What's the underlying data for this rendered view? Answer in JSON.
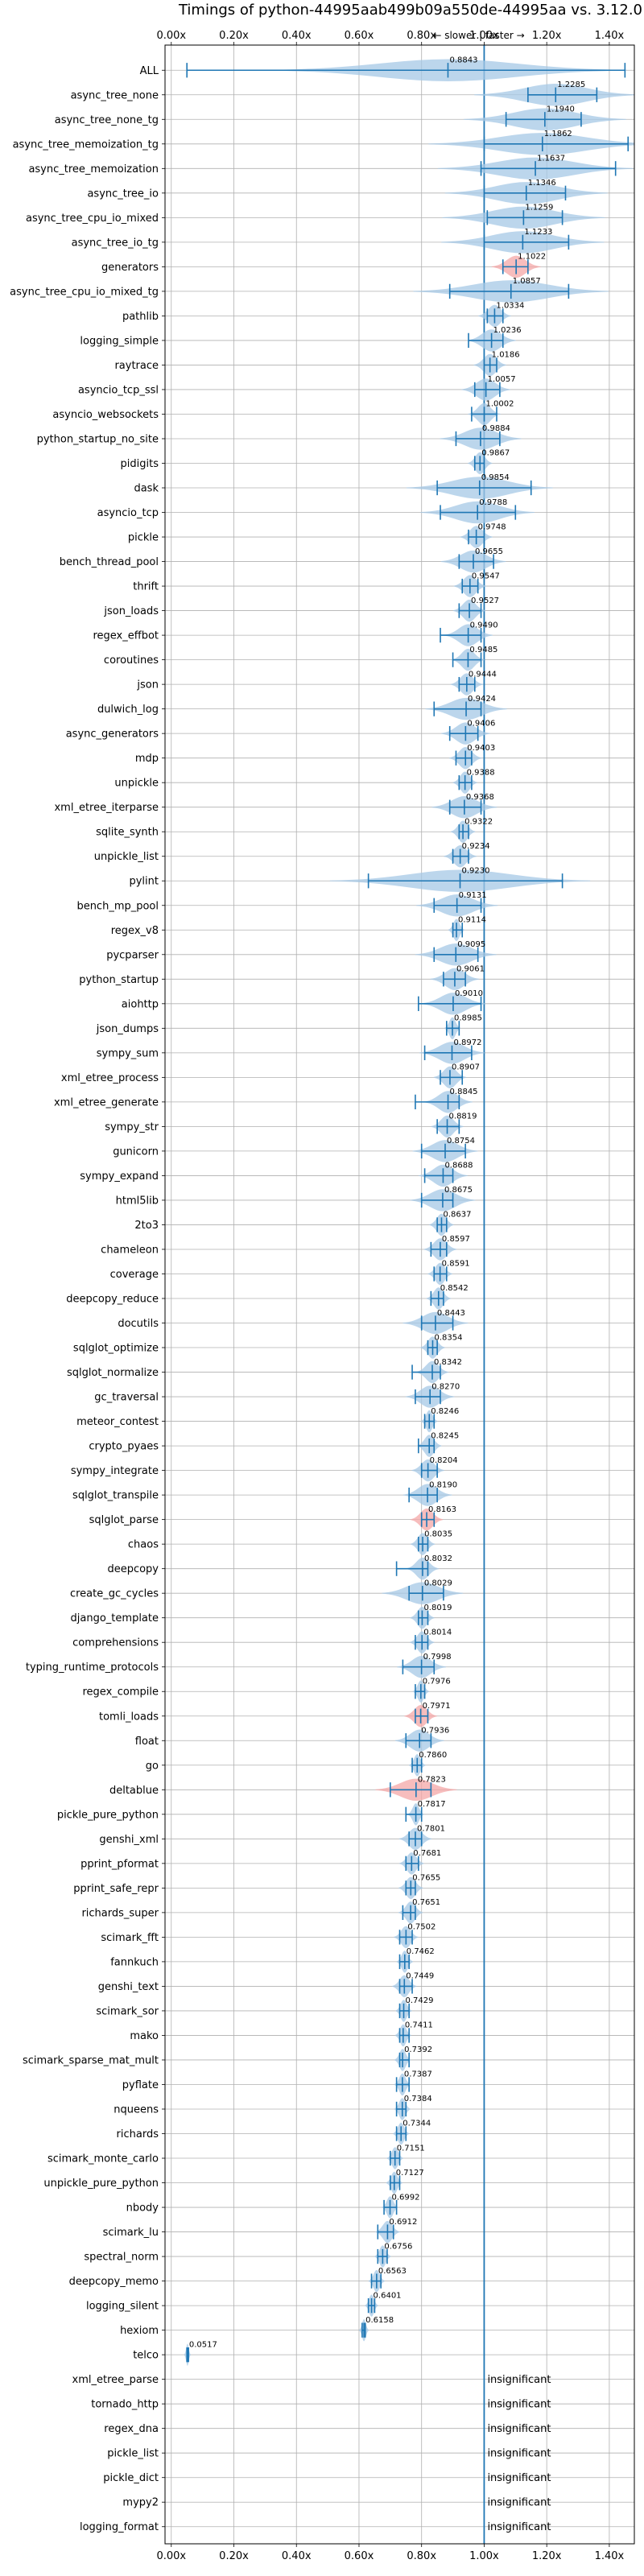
{
  "chart_data": {
    "type": "violin",
    "title": "Timings of python-44995aab499b09a550de-44995aa vs. 3.12.0",
    "xlabel": "",
    "ylabel": "",
    "xlim": [
      -0.02,
      1.48
    ],
    "xticks": [
      0.0,
      0.2,
      0.4,
      0.6,
      0.8,
      1.0,
      1.2,
      1.4
    ],
    "xtick_labels": [
      "0.00x",
      "0.20x",
      "0.40x",
      "0.60x",
      "0.80x",
      "1.00x",
      "1.20x",
      "1.40x"
    ],
    "direction_annotation": "← slower | faster →",
    "reference_line": 1.0,
    "grid": true,
    "accent_color": "#1f77b4",
    "violin_color": "#a6c8e6",
    "flag_color": "#f4a7a7",
    "benchmarks": [
      {
        "name": "ALL",
        "value": 0.8843,
        "label": "0.8843",
        "lo": 0.05,
        "hi": 1.45,
        "spread": 0.22
      },
      {
        "name": "async_tree_none",
        "value": 1.2285,
        "label": "1.2285",
        "lo": 1.14,
        "hi": 1.36,
        "spread": 0.1
      },
      {
        "name": "async_tree_none_tg",
        "value": 1.194,
        "label": "1.1940",
        "lo": 1.07,
        "hi": 1.31,
        "spread": 0.1
      },
      {
        "name": "async_tree_memoization_tg",
        "value": 1.1862,
        "label": "1.1862",
        "lo": 1.0,
        "hi": 1.46,
        "spread": 0.14
      },
      {
        "name": "async_tree_memoization",
        "value": 1.1637,
        "label": "1.1637",
        "lo": 0.99,
        "hi": 1.42,
        "spread": 0.12
      },
      {
        "name": "async_tree_io",
        "value": 1.1346,
        "label": "1.1346",
        "lo": 1.0,
        "hi": 1.26,
        "spread": 0.1
      },
      {
        "name": "async_tree_cpu_io_mixed",
        "value": 1.1259,
        "label": "1.1259",
        "lo": 1.01,
        "hi": 1.25,
        "spread": 0.1
      },
      {
        "name": "async_tree_io_tg",
        "value": 1.1233,
        "label": "1.1233",
        "lo": 1.0,
        "hi": 1.27,
        "spread": 0.1
      },
      {
        "name": "generators",
        "value": 1.1022,
        "label": "1.1022",
        "lo": 1.06,
        "hi": 1.14,
        "spread": 0.03,
        "flag": true
      },
      {
        "name": "async_tree_cpu_io_mixed_tg",
        "value": 1.0857,
        "label": "1.0857",
        "lo": 0.89,
        "hi": 1.27,
        "spread": 0.12
      },
      {
        "name": "pathlib",
        "value": 1.0334,
        "label": "1.0334",
        "lo": 1.01,
        "hi": 1.06,
        "spread": 0.02
      },
      {
        "name": "logging_simple",
        "value": 1.0236,
        "label": "1.0236",
        "lo": 0.95,
        "hi": 1.06,
        "spread": 0.03
      },
      {
        "name": "raytrace",
        "value": 1.0186,
        "label": "1.0186",
        "lo": 1.0,
        "hi": 1.04,
        "spread": 0.02
      },
      {
        "name": "asyncio_tcp_ssl",
        "value": 1.0057,
        "label": "1.0057",
        "lo": 0.97,
        "hi": 1.05,
        "spread": 0.03
      },
      {
        "name": "asyncio_websockets",
        "value": 1.0002,
        "label": "1.0002",
        "lo": 0.96,
        "hi": 1.04,
        "spread": 0.02
      },
      {
        "name": "python_startup_no_site",
        "value": 0.9884,
        "label": "0.9884",
        "lo": 0.91,
        "hi": 1.05,
        "spread": 0.05
      },
      {
        "name": "pidigits",
        "value": 0.9867,
        "label": "0.9867",
        "lo": 0.97,
        "hi": 1.0,
        "spread": 0.015
      },
      {
        "name": "dask",
        "value": 0.9854,
        "label": "0.9854",
        "lo": 0.85,
        "hi": 1.15,
        "spread": 0.09
      },
      {
        "name": "asyncio_tcp",
        "value": 0.9788,
        "label": "0.9788",
        "lo": 0.86,
        "hi": 1.1,
        "spread": 0.07
      },
      {
        "name": "pickle",
        "value": 0.9748,
        "label": "0.9748",
        "lo": 0.95,
        "hi": 1.0,
        "spread": 0.02
      },
      {
        "name": "bench_thread_pool",
        "value": 0.9655,
        "label": "0.9655",
        "lo": 0.92,
        "hi": 1.03,
        "spread": 0.04
      },
      {
        "name": "thrift",
        "value": 0.9547,
        "label": "0.9547",
        "lo": 0.93,
        "hi": 0.98,
        "spread": 0.02
      },
      {
        "name": "json_loads",
        "value": 0.9527,
        "label": "0.9527",
        "lo": 0.92,
        "hi": 0.99,
        "spread": 0.02
      },
      {
        "name": "regex_effbot",
        "value": 0.949,
        "label": "0.9490",
        "lo": 0.86,
        "hi": 0.99,
        "spread": 0.03
      },
      {
        "name": "coroutines",
        "value": 0.9485,
        "label": "0.9485",
        "lo": 0.9,
        "hi": 0.99,
        "spread": 0.02
      },
      {
        "name": "json",
        "value": 0.9444,
        "label": "0.9444",
        "lo": 0.92,
        "hi": 0.97,
        "spread": 0.02
      },
      {
        "name": "dulwich_log",
        "value": 0.9424,
        "label": "0.9424",
        "lo": 0.84,
        "hi": 0.99,
        "spread": 0.05
      },
      {
        "name": "async_generators",
        "value": 0.9406,
        "label": "0.9406",
        "lo": 0.89,
        "hi": 0.98,
        "spread": 0.03
      },
      {
        "name": "mdp",
        "value": 0.9403,
        "label": "0.9403",
        "lo": 0.91,
        "hi": 0.96,
        "spread": 0.02
      },
      {
        "name": "unpickle",
        "value": 0.9388,
        "label": "0.9388",
        "lo": 0.92,
        "hi": 0.96,
        "spread": 0.015
      },
      {
        "name": "xml_etree_iterparse",
        "value": 0.9368,
        "label": "0.9368",
        "lo": 0.89,
        "hi": 0.99,
        "spread": 0.04
      },
      {
        "name": "sqlite_synth",
        "value": 0.9322,
        "label": "0.9322",
        "lo": 0.92,
        "hi": 0.95,
        "spread": 0.015
      },
      {
        "name": "unpickle_list",
        "value": 0.9234,
        "label": "0.9234",
        "lo": 0.9,
        "hi": 0.95,
        "spread": 0.02
      },
      {
        "name": "pylint",
        "value": 0.923,
        "label": "0.9230",
        "lo": 0.63,
        "hi": 1.25,
        "spread": 0.16
      },
      {
        "name": "bench_mp_pool",
        "value": 0.9131,
        "label": "0.9131",
        "lo": 0.84,
        "hi": 0.99,
        "spread": 0.05
      },
      {
        "name": "regex_v8",
        "value": 0.9114,
        "label": "0.9114",
        "lo": 0.9,
        "hi": 0.93,
        "spread": 0.01
      },
      {
        "name": "pycparser",
        "value": 0.9095,
        "label": "0.9095",
        "lo": 0.84,
        "hi": 0.98,
        "spread": 0.05
      },
      {
        "name": "python_startup",
        "value": 0.9061,
        "label": "0.9061",
        "lo": 0.87,
        "hi": 0.94,
        "spread": 0.03
      },
      {
        "name": "aiohttp",
        "value": 0.901,
        "label": "0.9010",
        "lo": 0.79,
        "hi": 0.99,
        "spread": 0.04
      },
      {
        "name": "json_dumps",
        "value": 0.8985,
        "label": "0.8985",
        "lo": 0.88,
        "hi": 0.92,
        "spread": 0.01
      },
      {
        "name": "sympy_sum",
        "value": 0.8972,
        "label": "0.8972",
        "lo": 0.81,
        "hi": 0.96,
        "spread": 0.04
      },
      {
        "name": "xml_etree_process",
        "value": 0.8907,
        "label": "0.8907",
        "lo": 0.86,
        "hi": 0.93,
        "spread": 0.02
      },
      {
        "name": "xml_etree_generate",
        "value": 0.8845,
        "label": "0.8845",
        "lo": 0.78,
        "hi": 0.92,
        "spread": 0.03
      },
      {
        "name": "sympy_str",
        "value": 0.8819,
        "label": "0.8819",
        "lo": 0.85,
        "hi": 0.92,
        "spread": 0.02
      },
      {
        "name": "gunicorn",
        "value": 0.8754,
        "label": "0.8754",
        "lo": 0.8,
        "hi": 0.94,
        "spread": 0.04
      },
      {
        "name": "sympy_expand",
        "value": 0.8688,
        "label": "0.8688",
        "lo": 0.81,
        "hi": 0.9,
        "spread": 0.03
      },
      {
        "name": "html5lib",
        "value": 0.8675,
        "label": "0.8675",
        "lo": 0.8,
        "hi": 0.9,
        "spread": 0.04
      },
      {
        "name": "2to3",
        "value": 0.8637,
        "label": "0.8637",
        "lo": 0.85,
        "hi": 0.88,
        "spread": 0.015
      },
      {
        "name": "chameleon",
        "value": 0.8597,
        "label": "0.8597",
        "lo": 0.83,
        "hi": 0.88,
        "spread": 0.02
      },
      {
        "name": "coverage",
        "value": 0.8591,
        "label": "0.8591",
        "lo": 0.84,
        "hi": 0.88,
        "spread": 0.015
      },
      {
        "name": "deepcopy_reduce",
        "value": 0.8542,
        "label": "0.8542",
        "lo": 0.83,
        "hi": 0.87,
        "spread": 0.015
      },
      {
        "name": "docutils",
        "value": 0.8443,
        "label": "0.8443",
        "lo": 0.8,
        "hi": 0.9,
        "spread": 0.04
      },
      {
        "name": "sqlglot_optimize",
        "value": 0.8354,
        "label": "0.8354",
        "lo": 0.82,
        "hi": 0.85,
        "spread": 0.015
      },
      {
        "name": "sqlglot_normalize",
        "value": 0.8342,
        "label": "0.8342",
        "lo": 0.77,
        "hi": 0.86,
        "spread": 0.02
      },
      {
        "name": "gc_traversal",
        "value": 0.827,
        "label": "0.8270",
        "lo": 0.78,
        "hi": 0.86,
        "spread": 0.03
      },
      {
        "name": "meteor_contest",
        "value": 0.8246,
        "label": "0.8246",
        "lo": 0.81,
        "hi": 0.84,
        "spread": 0.01
      },
      {
        "name": "crypto_pyaes",
        "value": 0.8245,
        "label": "0.8245",
        "lo": 0.79,
        "hi": 0.84,
        "spread": 0.015
      },
      {
        "name": "sympy_integrate",
        "value": 0.8204,
        "label": "0.8204",
        "lo": 0.8,
        "hi": 0.85,
        "spread": 0.02
      },
      {
        "name": "sqlglot_transpile",
        "value": 0.819,
        "label": "0.8190",
        "lo": 0.76,
        "hi": 0.85,
        "spread": 0.03
      },
      {
        "name": "sqlglot_parse",
        "value": 0.8163,
        "label": "0.8163",
        "lo": 0.8,
        "hi": 0.84,
        "spread": 0.02,
        "flag": true
      },
      {
        "name": "chaos",
        "value": 0.8035,
        "label": "0.8035",
        "lo": 0.79,
        "hi": 0.82,
        "spread": 0.015
      },
      {
        "name": "deepcopy",
        "value": 0.8032,
        "label": "0.8032",
        "lo": 0.72,
        "hi": 0.82,
        "spread": 0.02
      },
      {
        "name": "create_gc_cycles",
        "value": 0.8029,
        "label": "0.8029",
        "lo": 0.76,
        "hi": 0.87,
        "spread": 0.05
      },
      {
        "name": "django_template",
        "value": 0.8019,
        "label": "0.8019",
        "lo": 0.79,
        "hi": 0.82,
        "spread": 0.015
      },
      {
        "name": "comprehensions",
        "value": 0.8014,
        "label": "0.8014",
        "lo": 0.78,
        "hi": 0.82,
        "spread": 0.015
      },
      {
        "name": "typing_runtime_protocols",
        "value": 0.7998,
        "label": "0.7998",
        "lo": 0.74,
        "hi": 0.84,
        "spread": 0.03
      },
      {
        "name": "regex_compile",
        "value": 0.7976,
        "label": "0.7976",
        "lo": 0.78,
        "hi": 0.81,
        "spread": 0.01
      },
      {
        "name": "tomli_loads",
        "value": 0.7971,
        "label": "0.7971",
        "lo": 0.78,
        "hi": 0.82,
        "spread": 0.02,
        "flag": true
      },
      {
        "name": "float",
        "value": 0.7936,
        "label": "0.7936",
        "lo": 0.75,
        "hi": 0.83,
        "spread": 0.03
      },
      {
        "name": "go",
        "value": 0.786,
        "label": "0.7860",
        "lo": 0.77,
        "hi": 0.8,
        "spread": 0.01
      },
      {
        "name": "deltablue",
        "value": 0.7823,
        "label": "0.7823",
        "lo": 0.7,
        "hi": 0.83,
        "spread": 0.05,
        "flag": true
      },
      {
        "name": "pickle_pure_python",
        "value": 0.7817,
        "label": "0.7817",
        "lo": 0.75,
        "hi": 0.8,
        "spread": 0.01
      },
      {
        "name": "genshi_xml",
        "value": 0.7801,
        "label": "0.7801",
        "lo": 0.76,
        "hi": 0.8,
        "spread": 0.02
      },
      {
        "name": "pprint_pformat",
        "value": 0.7681,
        "label": "0.7681",
        "lo": 0.75,
        "hi": 0.79,
        "spread": 0.015
      },
      {
        "name": "pprint_safe_repr",
        "value": 0.7655,
        "label": "0.7655",
        "lo": 0.75,
        "hi": 0.78,
        "spread": 0.015
      },
      {
        "name": "richards_super",
        "value": 0.7651,
        "label": "0.7651",
        "lo": 0.74,
        "hi": 0.78,
        "spread": 0.015
      },
      {
        "name": "scimark_fft",
        "value": 0.7502,
        "label": "0.7502",
        "lo": 0.73,
        "hi": 0.77,
        "spread": 0.015
      },
      {
        "name": "fannkuch",
        "value": 0.7462,
        "label": "0.7462",
        "lo": 0.73,
        "hi": 0.76,
        "spread": 0.01
      },
      {
        "name": "genshi_text",
        "value": 0.7449,
        "label": "0.7449",
        "lo": 0.73,
        "hi": 0.77,
        "spread": 0.015
      },
      {
        "name": "scimark_sor",
        "value": 0.7429,
        "label": "0.7429",
        "lo": 0.73,
        "hi": 0.76,
        "spread": 0.01
      },
      {
        "name": "mako",
        "value": 0.7411,
        "label": "0.7411",
        "lo": 0.73,
        "hi": 0.76,
        "spread": 0.01
      },
      {
        "name": "scimark_sparse_mat_mult",
        "value": 0.7392,
        "label": "0.7392",
        "lo": 0.73,
        "hi": 0.76,
        "spread": 0.01
      },
      {
        "name": "pyflate",
        "value": 0.7387,
        "label": "0.7387",
        "lo": 0.72,
        "hi": 0.76,
        "spread": 0.01
      },
      {
        "name": "nqueens",
        "value": 0.7384,
        "label": "0.7384",
        "lo": 0.72,
        "hi": 0.75,
        "spread": 0.01
      },
      {
        "name": "richards",
        "value": 0.7344,
        "label": "0.7344",
        "lo": 0.72,
        "hi": 0.75,
        "spread": 0.01
      },
      {
        "name": "scimark_monte_carlo",
        "value": 0.7151,
        "label": "0.7151",
        "lo": 0.7,
        "hi": 0.73,
        "spread": 0.01
      },
      {
        "name": "unpickle_pure_python",
        "value": 0.7127,
        "label": "0.7127",
        "lo": 0.7,
        "hi": 0.73,
        "spread": 0.01
      },
      {
        "name": "nbody",
        "value": 0.6992,
        "label": "0.6992",
        "lo": 0.68,
        "hi": 0.72,
        "spread": 0.01
      },
      {
        "name": "scimark_lu",
        "value": 0.6912,
        "label": "0.6912",
        "lo": 0.66,
        "hi": 0.71,
        "spread": 0.015
      },
      {
        "name": "spectral_norm",
        "value": 0.6756,
        "label": "0.6756",
        "lo": 0.66,
        "hi": 0.69,
        "spread": 0.01
      },
      {
        "name": "deepcopy_memo",
        "value": 0.6563,
        "label": "0.6563",
        "lo": 0.64,
        "hi": 0.67,
        "spread": 0.01
      },
      {
        "name": "logging_silent",
        "value": 0.6401,
        "label": "0.6401",
        "lo": 0.63,
        "hi": 0.65,
        "spread": 0.008
      },
      {
        "name": "hexiom",
        "value": 0.6158,
        "label": "0.6158",
        "lo": 0.61,
        "hi": 0.62,
        "spread": 0.006
      },
      {
        "name": "telco",
        "value": 0.0517,
        "label": "0.0517",
        "lo": 0.05,
        "hi": 0.055,
        "spread": 0.004
      },
      {
        "name": "xml_etree_parse",
        "status": "insignificant"
      },
      {
        "name": "tornado_http",
        "status": "insignificant"
      },
      {
        "name": "regex_dna",
        "status": "insignificant"
      },
      {
        "name": "pickle_list",
        "status": "insignificant"
      },
      {
        "name": "pickle_dict",
        "status": "insignificant"
      },
      {
        "name": "mypy2",
        "status": "insignificant"
      },
      {
        "name": "logging_format",
        "status": "insignificant"
      }
    ]
  }
}
